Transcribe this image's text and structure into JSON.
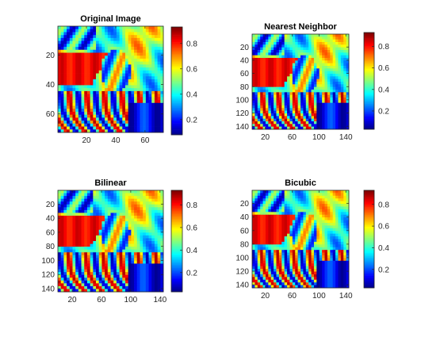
{
  "figure": {
    "background": "#ffffff",
    "colormap": "jet",
    "colormap_stops": [
      "#00008f",
      "#0000ff",
      "#00ffff",
      "#ffff00",
      "#ff0000",
      "#800000"
    ]
  },
  "chart_data": [
    {
      "type": "heatmap",
      "title": "Original Image",
      "xlabel": "",
      "ylabel": "",
      "image_size": [
        72,
        72
      ],
      "xlim": [
        0.5,
        72.5
      ],
      "ylim": [
        0.5,
        72.5
      ],
      "y_direction": "reverse",
      "xticks": [
        20,
        40,
        60
      ],
      "yticks": [
        20,
        40,
        60
      ],
      "colorbar": {
        "ticks": [
          0.2,
          0.4,
          0.6,
          0.8
        ],
        "range": [
          0.08,
          0.93
        ],
        "colormap": "jet"
      }
    },
    {
      "type": "heatmap",
      "title": "Nearest Neighbor",
      "xlabel": "",
      "ylabel": "",
      "image_size": [
        144,
        144
      ],
      "xlim": [
        0.5,
        144.5
      ],
      "ylim": [
        0.5,
        144.5
      ],
      "y_direction": "reverse",
      "xticks": [
        20,
        60,
        100,
        140
      ],
      "yticks": [
        20,
        40,
        60,
        80,
        100,
        120,
        140
      ],
      "colorbar": {
        "ticks": [
          0.2,
          0.4,
          0.6,
          0.8
        ],
        "range": [
          0.03,
          0.93
        ],
        "colormap": "jet"
      }
    },
    {
      "type": "heatmap",
      "title": "Bilinear",
      "xlabel": "",
      "ylabel": "",
      "image_size": [
        144,
        144
      ],
      "xlim": [
        0.5,
        144.5
      ],
      "ylim": [
        0.5,
        144.5
      ],
      "y_direction": "reverse",
      "xticks": [
        20,
        60,
        100,
        140
      ],
      "yticks": [
        20,
        40,
        60,
        80,
        100,
        120,
        140
      ],
      "colorbar": {
        "ticks": [
          0.2,
          0.4,
          0.6,
          0.8
        ],
        "range": [
          0.03,
          0.93
        ],
        "colormap": "jet"
      }
    },
    {
      "type": "heatmap",
      "title": "Bicubic",
      "xlabel": "",
      "ylabel": "",
      "image_size": [
        144,
        144
      ],
      "xlim": [
        0.5,
        144.5
      ],
      "ylim": [
        0.5,
        144.5
      ],
      "y_direction": "reverse",
      "xticks": [
        20,
        60,
        100,
        140
      ],
      "yticks": [
        20,
        40,
        60,
        80,
        100,
        120,
        140
      ],
      "colorbar": {
        "ticks": [
          0.2,
          0.4,
          0.6,
          0.8
        ],
        "range": [
          0.03,
          0.93
        ],
        "colormap": "jet"
      }
    }
  ]
}
